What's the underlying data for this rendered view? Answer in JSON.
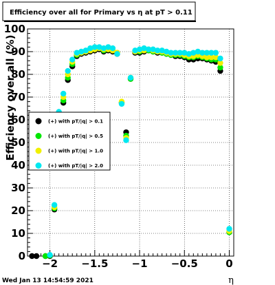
{
  "footer": {
    "timestamp": "Wed Jan 13 14:54:59 2021"
  },
  "chart_data": {
    "type": "scatter",
    "title": "Efficiency over all for Primary vs   η at pT > 0.11",
    "xlabel": "η",
    "ylabel": "Efficiency over all (%)",
    "xlim": [
      -2.25,
      0.05
    ],
    "ylim": [
      0,
      100
    ],
    "xticks": [
      -2,
      -1.5,
      -1,
      -0.5,
      0
    ],
    "xtick_labels": [
      "−2",
      "−1.5",
      "−1",
      "−0.5",
      "0"
    ],
    "yticks": [
      0,
      10,
      20,
      30,
      40,
      50,
      60,
      70,
      80,
      90,
      100
    ],
    "ytick_labels": [
      "0",
      "10",
      "20",
      "30",
      "40",
      "50",
      "60",
      "70",
      "80",
      "90",
      "100"
    ],
    "grid": true,
    "legend_position": "left-middle",
    "x": [
      -2.2,
      -2.15,
      -2.05,
      -2.0,
      -1.95,
      -1.9,
      -1.85,
      -1.8,
      -1.75,
      -1.7,
      -1.65,
      -1.6,
      -1.55,
      -1.5,
      -1.45,
      -1.4,
      -1.35,
      -1.3,
      -1.25,
      -1.2,
      -1.15,
      -1.1,
      -1.05,
      -1.0,
      -0.95,
      -0.9,
      -0.85,
      -0.8,
      -0.75,
      -0.7,
      -0.65,
      -0.6,
      -0.55,
      -0.5,
      -0.45,
      -0.4,
      -0.35,
      -0.3,
      -0.25,
      -0.2,
      -0.15,
      -0.1,
      -0.05,
      0.0
    ],
    "series": [
      {
        "name": "(+) with pT/|q| > 0.1",
        "color": "#000000",
        "values": [
          0,
          0,
          0,
          0,
          20.5,
          null,
          67.5,
          77.5,
          83.5,
          88.0,
          89.0,
          89.5,
          90.0,
          90.5,
          91.0,
          90.0,
          90.5,
          90.0,
          89.0,
          67.5,
          54.5,
          78.0,
          89.5,
          89.5,
          90.0,
          90.5,
          90.0,
          89.5,
          89.5,
          89.0,
          88.5,
          88.0,
          88.0,
          87.5,
          86.5,
          86.5,
          87.0,
          87.0,
          86.5,
          86.0,
          85.5,
          81.5,
          null,
          10.5
        ]
      },
      {
        "name": "(+) with pT/|q| > 0.5",
        "color": "#00e600",
        "values": [
          null,
          null,
          0,
          0.2,
          21.0,
          null,
          68.5,
          78.5,
          84.5,
          88.5,
          89.5,
          90.0,
          90.5,
          91.0,
          91.5,
          90.5,
          91.0,
          90.5,
          89.5,
          67.5,
          53.0,
          78.0,
          90.0,
          90.0,
          90.5,
          90.5,
          90.0,
          90.0,
          89.5,
          89.0,
          88.5,
          88.5,
          88.5,
          88.0,
          87.5,
          87.5,
          88.0,
          87.5,
          87.0,
          86.5,
          86.5,
          83.0,
          null,
          10.5
        ]
      },
      {
        "name": "(+) with pT/|q| > 1.0",
        "color": "#f0f000",
        "values": [
          null,
          null,
          null,
          null,
          21.5,
          null,
          70.0,
          80.0,
          85.5,
          89.0,
          89.5,
          90.0,
          90.5,
          91.0,
          91.5,
          91.0,
          91.0,
          90.5,
          89.5,
          68.0,
          52.0,
          78.5,
          90.0,
          90.5,
          90.5,
          91.0,
          90.5,
          90.0,
          90.0,
          89.5,
          89.0,
          89.0,
          89.0,
          88.5,
          88.0,
          88.0,
          88.5,
          88.0,
          87.5,
          87.5,
          87.5,
          85.0,
          null,
          11.0
        ]
      },
      {
        "name": "(+) with pT/|q| > 2.0",
        "color": "#00e8f0",
        "values": [
          null,
          null,
          null,
          0.5,
          22.5,
          63.5,
          71.5,
          81.5,
          86.5,
          89.5,
          90.0,
          90.5,
          91.5,
          92.0,
          92.0,
          91.5,
          92.0,
          91.5,
          89.0,
          67.0,
          51.0,
          78.5,
          90.5,
          91.0,
          91.5,
          91.0,
          91.0,
          90.5,
          90.5,
          90.0,
          89.5,
          89.5,
          89.5,
          89.5,
          89.0,
          89.5,
          90.0,
          89.5,
          89.5,
          89.5,
          89.5,
          87.0,
          null,
          12.0
        ]
      }
    ]
  }
}
